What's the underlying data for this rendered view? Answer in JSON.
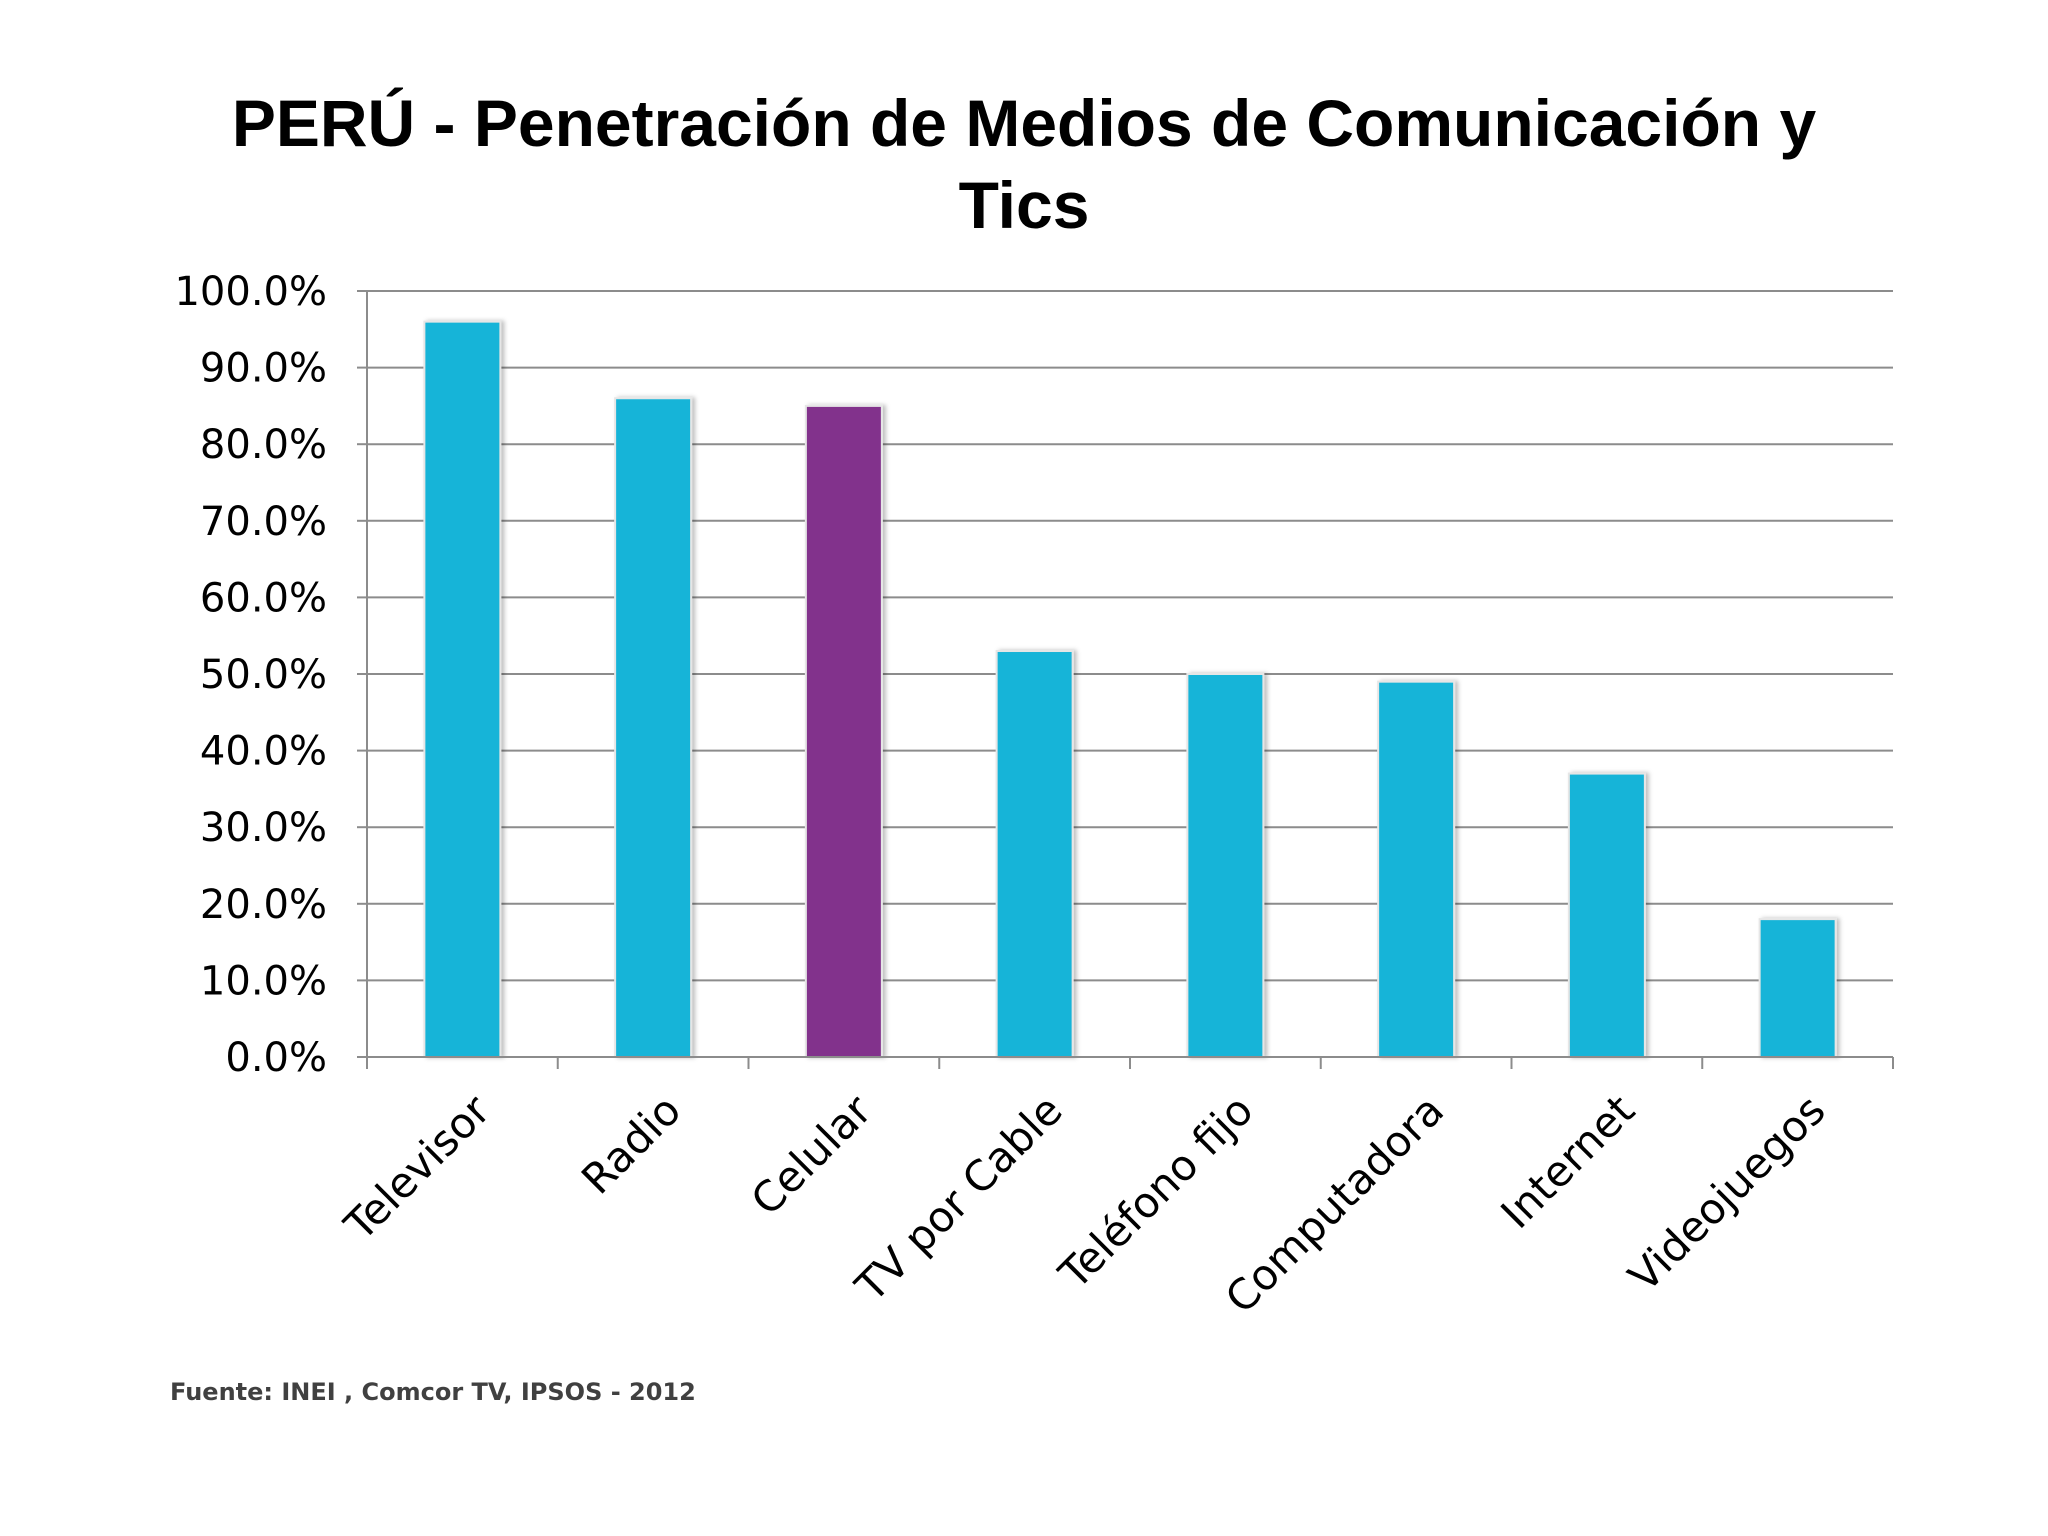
{
  "chart_data": {
    "type": "bar",
    "title_lines": [
      "PERÚ - Penetración de Medios de Comunicación y",
      "Tics"
    ],
    "categories": [
      "Televisor",
      "Radio",
      "Celular",
      "TV por Cable",
      "Teléfono fijo",
      "Computadora",
      "Internet",
      "Videojuegos"
    ],
    "values": [
      96.0,
      86.0,
      85.0,
      53.0,
      50.0,
      49.0,
      37.0,
      18.0
    ],
    "colors": [
      "#17b4d8",
      "#17b4d8",
      "#82308c",
      "#17b4d8",
      "#17b4d8",
      "#17b4d8",
      "#17b4d8",
      "#17b4d8"
    ],
    "ylim": [
      0,
      100
    ],
    "yticks": [
      "0.0%",
      "10.0%",
      "20.0%",
      "30.0%",
      "40.0%",
      "50.0%",
      "60.0%",
      "70.0%",
      "80.0%",
      "90.0%",
      "100.0%"
    ],
    "grid": true,
    "legend": "none"
  },
  "source": "Fuente: INEI , Comcor TV, IPSOS - 2012"
}
